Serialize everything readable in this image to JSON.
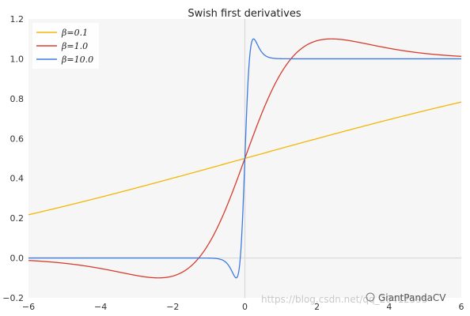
{
  "chart_data": {
    "type": "line",
    "title": "Swish first derivatives",
    "xlim": [
      -6,
      6
    ],
    "ylim": [
      -0.2,
      1.2
    ],
    "xticks": [
      -6,
      -4,
      -2,
      0,
      2,
      4,
      6
    ],
    "xtick_labels": [
      "−6",
      "−4",
      "−2",
      "0",
      "2",
      "4",
      "6"
    ],
    "yticks": [
      -0.2,
      0.0,
      0.2,
      0.4,
      0.6,
      0.8,
      1.0,
      1.2
    ],
    "ytick_labels": [
      "−0.2",
      "0.0",
      "0.2",
      "0.4",
      "0.6",
      "0.8",
      "1.0",
      "1.2"
    ],
    "grid": false,
    "legend_position": "top-left",
    "series": [
      {
        "name": "β=0.1",
        "beta": 0.1,
        "color": "#f2b705",
        "x": [
          -6,
          -5,
          -4,
          -3,
          -2,
          -1,
          0,
          1,
          2,
          3,
          4,
          5,
          6
        ],
        "y": [
          0.215,
          0.264,
          0.314,
          0.365,
          0.416,
          0.469,
          0.5,
          0.54,
          0.584,
          0.635,
          0.686,
          0.736,
          0.785
        ]
      },
      {
        "name": "β=1.0",
        "beta": 1.0,
        "color": "#d63c2f",
        "x": [
          -6,
          -5,
          -4,
          -3,
          -2,
          -1,
          -0.5,
          0,
          0.5,
          1,
          2,
          2.4,
          3,
          4,
          5,
          6
        ],
        "y": [
          -0.012,
          -0.027,
          -0.053,
          -0.088,
          -0.091,
          0.072,
          0.26,
          0.5,
          0.74,
          0.928,
          1.091,
          1.1,
          1.088,
          1.053,
          1.027,
          1.012
        ]
      },
      {
        "name": "β=10.0",
        "beta": 10.0,
        "color": "#3c7be0",
        "x": [
          -6,
          -1,
          -0.5,
          -0.24,
          -0.1,
          0,
          0.1,
          0.24,
          0.5,
          1,
          6
        ],
        "y": [
          0,
          0,
          -0.03,
          -0.1,
          0.02,
          0.5,
          0.98,
          1.1,
          1.03,
          1.0,
          1.0
        ]
      }
    ],
    "annotations": {
      "watermark": "https://blog.csdn.net/qq_20412595",
      "brand": "GiantPandaCV"
    }
  }
}
